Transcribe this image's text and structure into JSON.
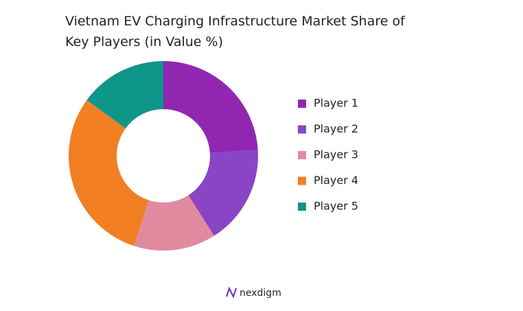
{
  "chart_data": {
    "type": "donut",
    "title": "Vietnam EV Charging Infrastructure  Market Share of Key Players (in Value %)",
    "categories": [
      "Player 1",
      "Player 2",
      "Player 3",
      "Player 4",
      "Player 5"
    ],
    "values": [
      24,
      17,
      14,
      30,
      15
    ],
    "colors": [
      "#9127b0",
      "#8a45c4",
      "#e08aa0",
      "#f27f23",
      "#0e9688"
    ],
    "legend": "right"
  },
  "footer": {
    "logo": "nexdigm"
  }
}
